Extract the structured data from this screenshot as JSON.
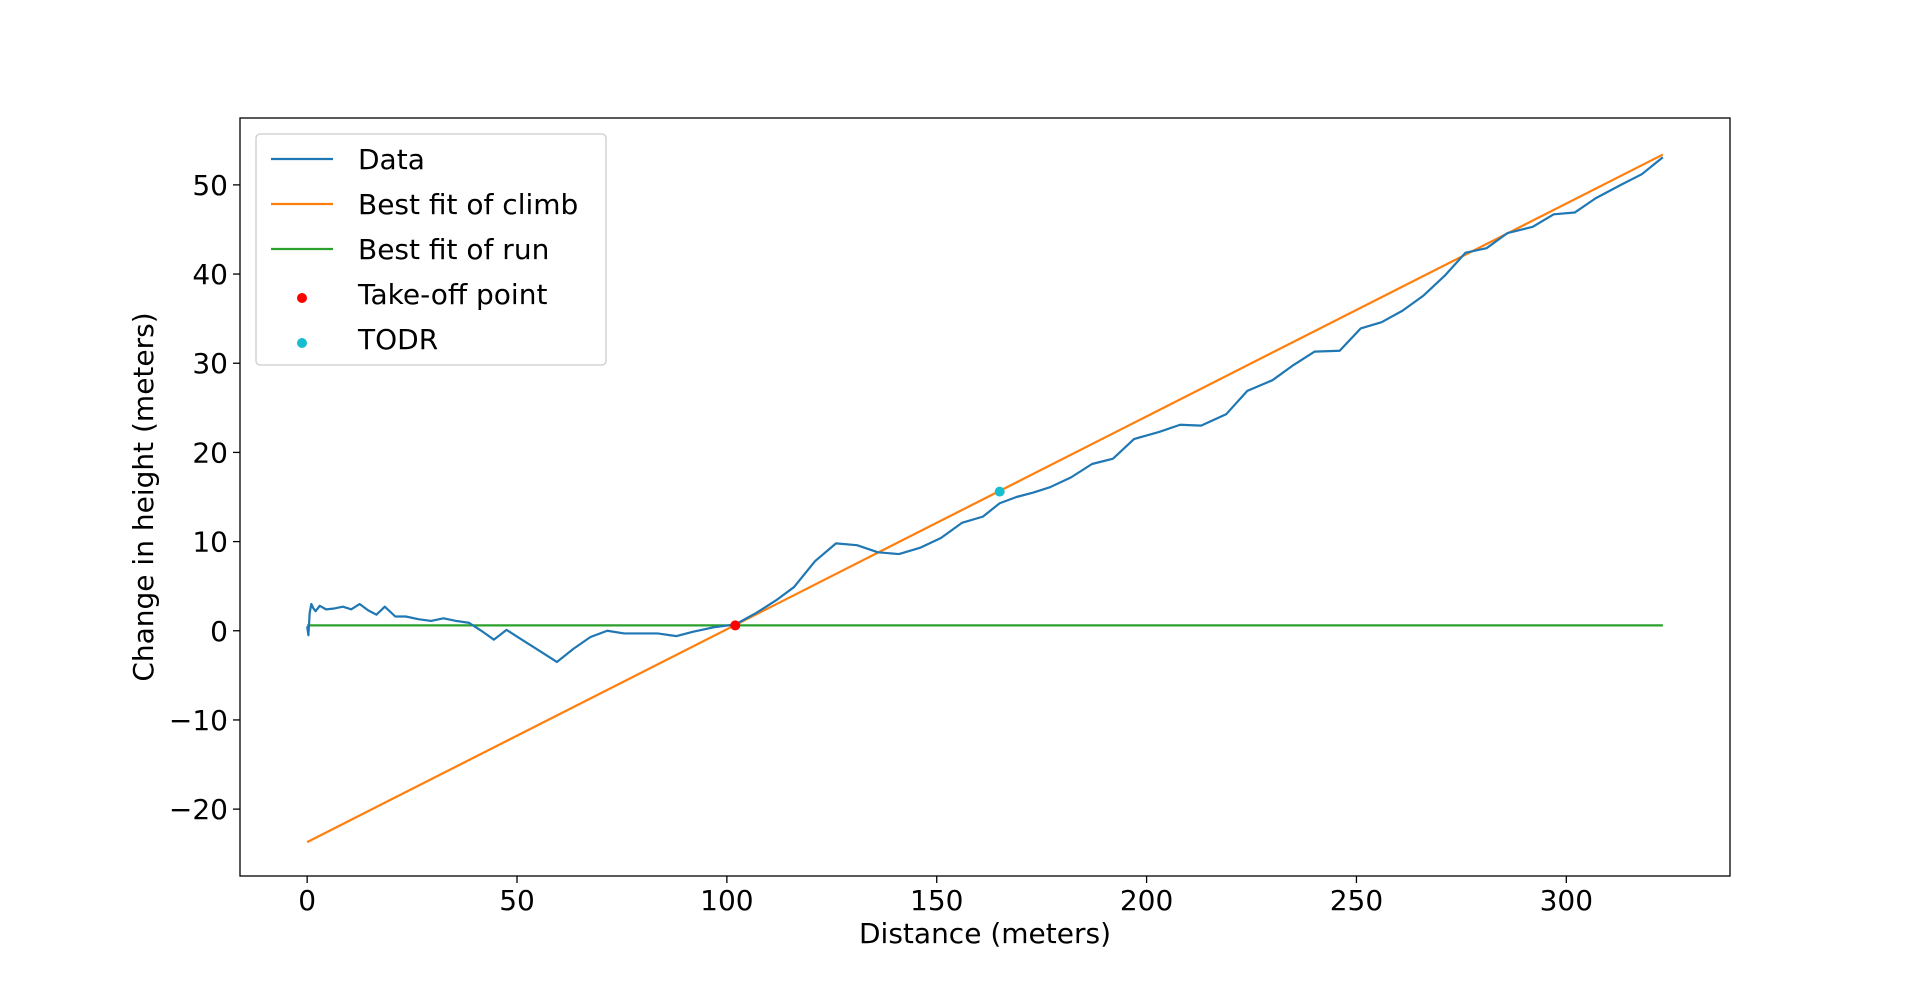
{
  "chart_data": {
    "type": "line",
    "title": "",
    "xlabel": "Distance (meters)",
    "ylabel": "Change in height (meters)",
    "xlim": [
      -16,
      339
    ],
    "ylim": [
      -27.5,
      57.5
    ],
    "xticks": [
      0,
      50,
      100,
      150,
      200,
      250,
      300
    ],
    "xtick_labels": [
      "0",
      "50",
      "100",
      "150",
      "200",
      "250",
      "300"
    ],
    "yticks": [
      -20,
      -10,
      0,
      10,
      20,
      30,
      40,
      50
    ],
    "ytick_labels": [
      "−20",
      "−10",
      "0",
      "10",
      "20",
      "30",
      "40",
      "50"
    ],
    "grid": false,
    "legend_position": "upper-left",
    "series": [
      {
        "name": "Data",
        "kind": "line",
        "color": "#1f77b4",
        "x": [
          0,
          0.3,
          0.6,
          1.0,
          1.5,
          2.0,
          3.0,
          4.5,
          6.5,
          8.5,
          10.5,
          12.5,
          14.5,
          16.5,
          18.5,
          21,
          23.5,
          26.5,
          29.5,
          32.5,
          35.5,
          38.5,
          41.5,
          44.5,
          47.5,
          50.5,
          54.5,
          59.5,
          63.5,
          67.5,
          71.5,
          75.5,
          79.5,
          83.5,
          88,
          92,
          97,
          102,
          107,
          112,
          116,
          121,
          126,
          131,
          136,
          141,
          146,
          151,
          156,
          161,
          165,
          169,
          173,
          177,
          182,
          187,
          192,
          197,
          203,
          208,
          213,
          219,
          224,
          230,
          235,
          240,
          246,
          251,
          256,
          261,
          266,
          271,
          276,
          281,
          286,
          292,
          297,
          302,
          307,
          313,
          318,
          323
        ],
        "y": [
          0.5,
          -0.5,
          2.0,
          3.0,
          2.5,
          2.2,
          2.8,
          2.4,
          2.5,
          2.7,
          2.4,
          3.0,
          2.3,
          1.8,
          2.7,
          1.6,
          1.6,
          1.3,
          1.1,
          1.4,
          1.1,
          0.9,
          0.0,
          -1.0,
          0.1,
          -0.8,
          -2.0,
          -3.5,
          -2.0,
          -0.7,
          0.0,
          -0.3,
          -0.3,
          -0.3,
          -0.6,
          -0.1,
          0.4,
          0.7,
          2.0,
          3.5,
          4.9,
          7.8,
          9.8,
          9.6,
          8.8,
          8.6,
          9.3,
          10.4,
          12.1,
          12.8,
          14.3,
          15.0,
          15.5,
          16.1,
          17.2,
          18.7,
          19.3,
          21.5,
          22.3,
          23.1,
          23.0,
          24.3,
          26.9,
          28.1,
          29.8,
          31.3,
          31.4,
          33.9,
          34.6,
          35.9,
          37.6,
          39.8,
          42.4,
          42.9,
          44.6,
          45.3,
          46.7,
          46.9,
          48.5,
          50.0,
          51.2,
          53.1
        ]
      },
      {
        "name": "Best fit of climb",
        "kind": "line",
        "color": "#ff7f0e",
        "x": [
          0,
          323
        ],
        "y": [
          -23.7,
          53.4
        ]
      },
      {
        "name": "Best fit of run",
        "kind": "line",
        "color": "#2ca02c",
        "x": [
          0,
          323
        ],
        "y": [
          0.6,
          0.6
        ]
      },
      {
        "name": "Take-off point",
        "kind": "point",
        "color": "#ff0000",
        "x": [
          102
        ],
        "y": [
          0.6
        ]
      },
      {
        "name": "TODR",
        "kind": "point",
        "color": "#17becf",
        "x": [
          165
        ],
        "y": [
          15.6
        ]
      }
    ]
  }
}
